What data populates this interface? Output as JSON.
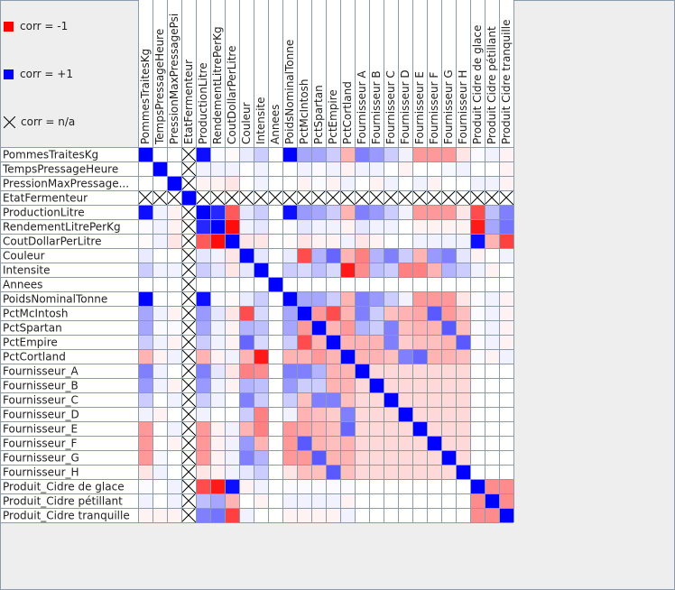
{
  "legend": {
    "neg_label": "corr = -1",
    "pos_label": "corr = +1",
    "na_label": "corr = n/a",
    "neg_color": "#ff0000",
    "pos_color": "#0000ff",
    "na_icon": "x-cross-icon"
  },
  "chart_data": {
    "type": "heatmap",
    "title": "",
    "value_range": [
      -1,
      1
    ],
    "colors": {
      "negative": "#ff0000",
      "positive": "#0000ff",
      "neutral": "#ffffff",
      "grid": "#8a9bb0"
    },
    "row_labels": [
      "PommesTraitesKg",
      "TempsPressageHeure",
      "PressionMaxPressage...",
      "EtatFermenteur",
      "ProductionLitre",
      "RendementLitrePerKg",
      "CoutDollarPerLitre",
      "Couleur",
      "Intensite",
      "Annees",
      "PoidsNominalTonne",
      "PctMcIntosh",
      "PctSpartan",
      "PctEmpire",
      "PctCortland",
      "Fournisseur_A",
      "Fournisseur_B",
      "Fournisseur_C",
      "Fournisseur_D",
      "Fournisseur_E",
      "Fournisseur_F",
      "Fournisseur_G",
      "Fournisseur_H",
      "Produit_Cidre de glace",
      "Produit_Cidre pétillant",
      "Produit_Cidre tranquille"
    ],
    "column_labels": [
      "PommesTraitesKg",
      "TempsPressageHeure",
      "PressionMaxPressagePsi",
      "EtatFermenteur",
      "ProductionLitre",
      "RendementLitrePerKg",
      "CoutDollarPerLitre",
      "Couleur",
      "Intensite",
      "Annees",
      "PoidsNominalTonne",
      "PctMcIntosh",
      "PctSpartan",
      "PctEmpire",
      "PctCortland",
      "Fournisseur  A",
      "Fournisseur  B",
      "Fournisseur  C",
      "Fournisseur  D",
      "Fournisseur  E",
      "Fournisseur  F",
      "Fournisseur  G",
      "Fournisseur  H",
      "Produit  Cidre de glace",
      "Produit  Cidre pétillant",
      "Produit  Cidre tranquille"
    ],
    "na_index": 3,
    "matrix": [
      [
        1,
        0,
        0,
        null,
        0.95,
        0.02,
        -0.02,
        0.08,
        0.2,
        0,
        1,
        0.35,
        0.35,
        0.2,
        -0.3,
        0.5,
        0.4,
        0.2,
        0.05,
        -0.4,
        -0.4,
        -0.4,
        -0.1,
        0.02,
        0.05,
        -0.05
      ],
      [
        0,
        1,
        0,
        null,
        0.05,
        0.05,
        0.05,
        0,
        0.05,
        0,
        0,
        0.05,
        0.02,
        0.05,
        -0.05,
        0.05,
        0.05,
        0,
        -0.05,
        0,
        0,
        0.03,
        0.05,
        0,
        0,
        -0.05
      ],
      [
        0,
        0,
        1,
        null,
        -0.05,
        -0.05,
        -0.1,
        0,
        0.05,
        0,
        0,
        -0.05,
        0.02,
        -0.05,
        0.05,
        0,
        -0.05,
        0.05,
        0,
        0.05,
        -0.05,
        0,
        0,
        0.05,
        0.05,
        -0.05
      ],
      [
        null,
        null,
        null,
        1,
        null,
        null,
        null,
        null,
        null,
        null,
        null,
        null,
        null,
        null,
        null,
        null,
        null,
        null,
        null,
        null,
        null,
        null,
        null,
        null,
        null,
        null
      ],
      [
        0.95,
        0.05,
        -0.05,
        null,
        1,
        0.85,
        -0.65,
        0.1,
        0.2,
        0,
        0.95,
        0.4,
        0.35,
        0.2,
        -0.3,
        0.5,
        0.4,
        0.2,
        0.05,
        -0.4,
        -0.4,
        -0.4,
        -0.1,
        -0.7,
        0.25,
        0.5
      ],
      [
        0.02,
        0.05,
        -0.05,
        null,
        0.85,
        1,
        -0.95,
        0.05,
        0.1,
        0,
        0.02,
        0.1,
        0.05,
        0.05,
        -0.05,
        0.1,
        0.05,
        0.05,
        0,
        -0.05,
        -0.05,
        -0.05,
        -0.05,
        -0.9,
        0.35,
        0.55
      ],
      [
        -0.02,
        0.05,
        -0.1,
        null,
        -0.65,
        -0.95,
        1,
        -0.1,
        -0.1,
        0,
        -0.02,
        -0.1,
        -0.05,
        -0.05,
        0.05,
        -0.1,
        -0.05,
        0,
        0,
        0.05,
        0.05,
        0.05,
        0.05,
        0.95,
        -0.3,
        -0.75
      ],
      [
        0.08,
        0,
        0,
        null,
        0.1,
        0.05,
        -0.1,
        1,
        0.1,
        0,
        0.08,
        -0.7,
        0.3,
        0.6,
        -0.3,
        -0.5,
        0.3,
        0.5,
        0.2,
        -0.3,
        0.4,
        0.5,
        0.1,
        -0.05,
        0,
        0.05
      ],
      [
        0.2,
        0.05,
        0.05,
        null,
        0.2,
        0.1,
        -0.1,
        0.1,
        1,
        0,
        0.2,
        0.15,
        0.25,
        0.15,
        -0.9,
        -0.45,
        0.25,
        0.2,
        -0.5,
        -0.5,
        -0.3,
        0.3,
        0.2,
        0.05,
        -0.05,
        0
      ],
      [
        0,
        0,
        0,
        null,
        0,
        0,
        0,
        0,
        0,
        1,
        0,
        0,
        0,
        0,
        0,
        0,
        0,
        0,
        0,
        0,
        0,
        0,
        0,
        0,
        0,
        0
      ],
      [
        1,
        0,
        0,
        null,
        0.95,
        0.02,
        -0.02,
        0.08,
        0.2,
        0,
        1,
        0.35,
        0.35,
        0.2,
        -0.3,
        0.5,
        0.4,
        0.2,
        0.05,
        -0.4,
        -0.4,
        -0.4,
        -0.1,
        0.02,
        0.05,
        -0.05
      ],
      [
        0.35,
        0.05,
        -0.05,
        null,
        0.4,
        0.1,
        -0.1,
        -0.7,
        0.15,
        0,
        0.35,
        1,
        -0.4,
        -0.7,
        -0.3,
        0.5,
        0.2,
        -0.25,
        -0.3,
        -0.35,
        0.65,
        -0.4,
        -0.25,
        0.02,
        0.05,
        -0.05
      ],
      [
        0.35,
        0.02,
        0.02,
        null,
        0.35,
        0.05,
        -0.05,
        0.3,
        0.25,
        0,
        0.35,
        -0.4,
        1,
        -0.3,
        -0.4,
        0.3,
        0.2,
        0.5,
        -0.25,
        -0.3,
        -0.3,
        0.65,
        -0.25,
        0.02,
        0.05,
        -0.05
      ],
      [
        0.2,
        0.05,
        -0.05,
        null,
        0.2,
        0.05,
        -0.05,
        0.6,
        0.15,
        0,
        0.2,
        -0.7,
        -0.3,
        1,
        -0.3,
        -0.3,
        -0.3,
        0.5,
        -0.2,
        -0.25,
        -0.25,
        -0.3,
        0.65,
        0.02,
        0.05,
        -0.05
      ],
      [
        -0.3,
        -0.05,
        0.05,
        null,
        -0.3,
        -0.05,
        0.05,
        -0.3,
        -0.9,
        0,
        -0.3,
        -0.3,
        -0.4,
        -0.3,
        1,
        -0.3,
        -0.3,
        -0.25,
        0.5,
        0.6,
        -0.3,
        -0.3,
        -0.25,
        0.02,
        -0.05,
        0.05
      ],
      [
        0.5,
        0.05,
        0,
        null,
        0.5,
        0.1,
        -0.1,
        -0.5,
        -0.45,
        0,
        0.5,
        0.5,
        0.3,
        -0.3,
        -0.3,
        1,
        -0.15,
        -0.15,
        -0.15,
        -0.15,
        -0.15,
        -0.15,
        -0.15,
        0,
        0,
        0
      ],
      [
        0.4,
        0.05,
        -0.05,
        null,
        0.4,
        0.05,
        -0.05,
        0.3,
        0.25,
        0,
        0.4,
        0.2,
        0.2,
        -0.3,
        -0.3,
        -0.15,
        1,
        -0.15,
        -0.15,
        -0.15,
        -0.15,
        -0.15,
        -0.15,
        0,
        0,
        0
      ],
      [
        0.2,
        0,
        0.05,
        null,
        0.2,
        0.05,
        0,
        0.5,
        0.2,
        0,
        0.2,
        -0.25,
        0.5,
        0.5,
        -0.25,
        -0.15,
        -0.15,
        1,
        -0.15,
        -0.15,
        -0.15,
        -0.15,
        -0.15,
        0,
        0,
        0
      ],
      [
        0.05,
        -0.05,
        0,
        null,
        0.05,
        0,
        0,
        0.2,
        -0.5,
        0,
        0.05,
        -0.3,
        -0.25,
        -0.2,
        0.5,
        -0.15,
        -0.15,
        -0.15,
        1,
        -0.15,
        -0.15,
        -0.15,
        -0.15,
        0,
        0,
        0
      ],
      [
        -0.4,
        0,
        0.05,
        null,
        -0.4,
        -0.05,
        0.05,
        -0.3,
        -0.5,
        0,
        -0.4,
        -0.35,
        -0.3,
        -0.25,
        0.6,
        -0.15,
        -0.15,
        -0.15,
        -0.15,
        1,
        -0.15,
        -0.15,
        -0.15,
        0,
        0,
        0
      ],
      [
        -0.4,
        0,
        -0.05,
        null,
        -0.4,
        -0.05,
        0.05,
        0.4,
        -0.3,
        0,
        -0.4,
        0.65,
        -0.3,
        -0.25,
        -0.3,
        -0.15,
        -0.15,
        -0.15,
        -0.15,
        -0.15,
        1,
        -0.15,
        -0.15,
        0,
        0,
        0
      ],
      [
        -0.4,
        0.03,
        0,
        null,
        -0.4,
        -0.05,
        0.05,
        0.5,
        0.3,
        0,
        -0.4,
        -0.4,
        0.65,
        -0.3,
        -0.3,
        -0.15,
        -0.15,
        -0.15,
        -0.15,
        -0.15,
        -0.15,
        1,
        -0.15,
        0,
        0,
        0
      ],
      [
        -0.1,
        0.05,
        0,
        null,
        -0.1,
        -0.05,
        0.05,
        0.1,
        0.2,
        0,
        -0.1,
        -0.25,
        -0.25,
        0.65,
        -0.25,
        -0.15,
        -0.15,
        -0.15,
        -0.15,
        -0.15,
        -0.15,
        -0.15,
        1,
        0,
        0,
        0
      ],
      [
        0.02,
        0,
        0.05,
        null,
        -0.7,
        -0.9,
        0.95,
        -0.05,
        0.05,
        0,
        0.02,
        0.02,
        0.02,
        0.02,
        0.02,
        0,
        0,
        0,
        0,
        0,
        0,
        0,
        0,
        1,
        -0.45,
        -0.45
      ],
      [
        0.05,
        0,
        0.05,
        null,
        0.25,
        0.35,
        -0.3,
        0,
        -0.05,
        0,
        0.05,
        0.05,
        0.05,
        0.05,
        -0.05,
        0,
        0,
        0,
        0,
        0,
        0,
        0,
        0,
        -0.45,
        1,
        -0.45
      ],
      [
        -0.05,
        -0.05,
        -0.05,
        null,
        0.5,
        0.55,
        -0.75,
        0.05,
        0,
        0,
        -0.05,
        -0.05,
        -0.05,
        -0.05,
        0.05,
        0,
        0,
        0,
        0,
        0,
        0,
        0,
        0,
        -0.45,
        -0.45,
        1
      ]
    ]
  }
}
